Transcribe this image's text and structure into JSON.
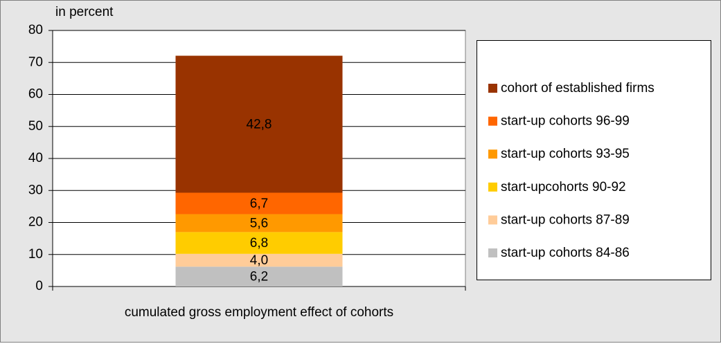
{
  "chart_data": {
    "type": "stacked_bar",
    "y_label": "in percent",
    "categories": [
      "cumulated gross employment effect of cohorts"
    ],
    "series": [
      {
        "name": "start-up cohorts 84-86",
        "color": "#c0c0c0",
        "values": [
          6.2
        ],
        "value_labels": [
          "6,2"
        ]
      },
      {
        "name": "start-up cohorts 87-89",
        "color": "#ffcc99",
        "values": [
          4.0
        ],
        "value_labels": [
          "4,0"
        ]
      },
      {
        "name": "start-upcohorts 90-92",
        "color": "#ffcc00",
        "values": [
          6.8
        ],
        "value_labels": [
          "6,8"
        ]
      },
      {
        "name": "start-up cohorts 93-95",
        "color": "#ff9900",
        "values": [
          5.6
        ],
        "value_labels": [
          "5,6"
        ]
      },
      {
        "name": "start-up cohorts 96-99",
        "color": "#ff6600",
        "values": [
          6.7
        ],
        "value_labels": [
          "6,7"
        ]
      },
      {
        "name": "cohort of established firms",
        "color": "#993300",
        "values": [
          42.8
        ],
        "value_labels": [
          "42,8"
        ]
      }
    ],
    "ylim": [
      0,
      80
    ],
    "yticks": [
      0,
      10,
      20,
      30,
      40,
      50,
      60,
      70,
      80
    ],
    "grid": true,
    "legend": "right"
  }
}
